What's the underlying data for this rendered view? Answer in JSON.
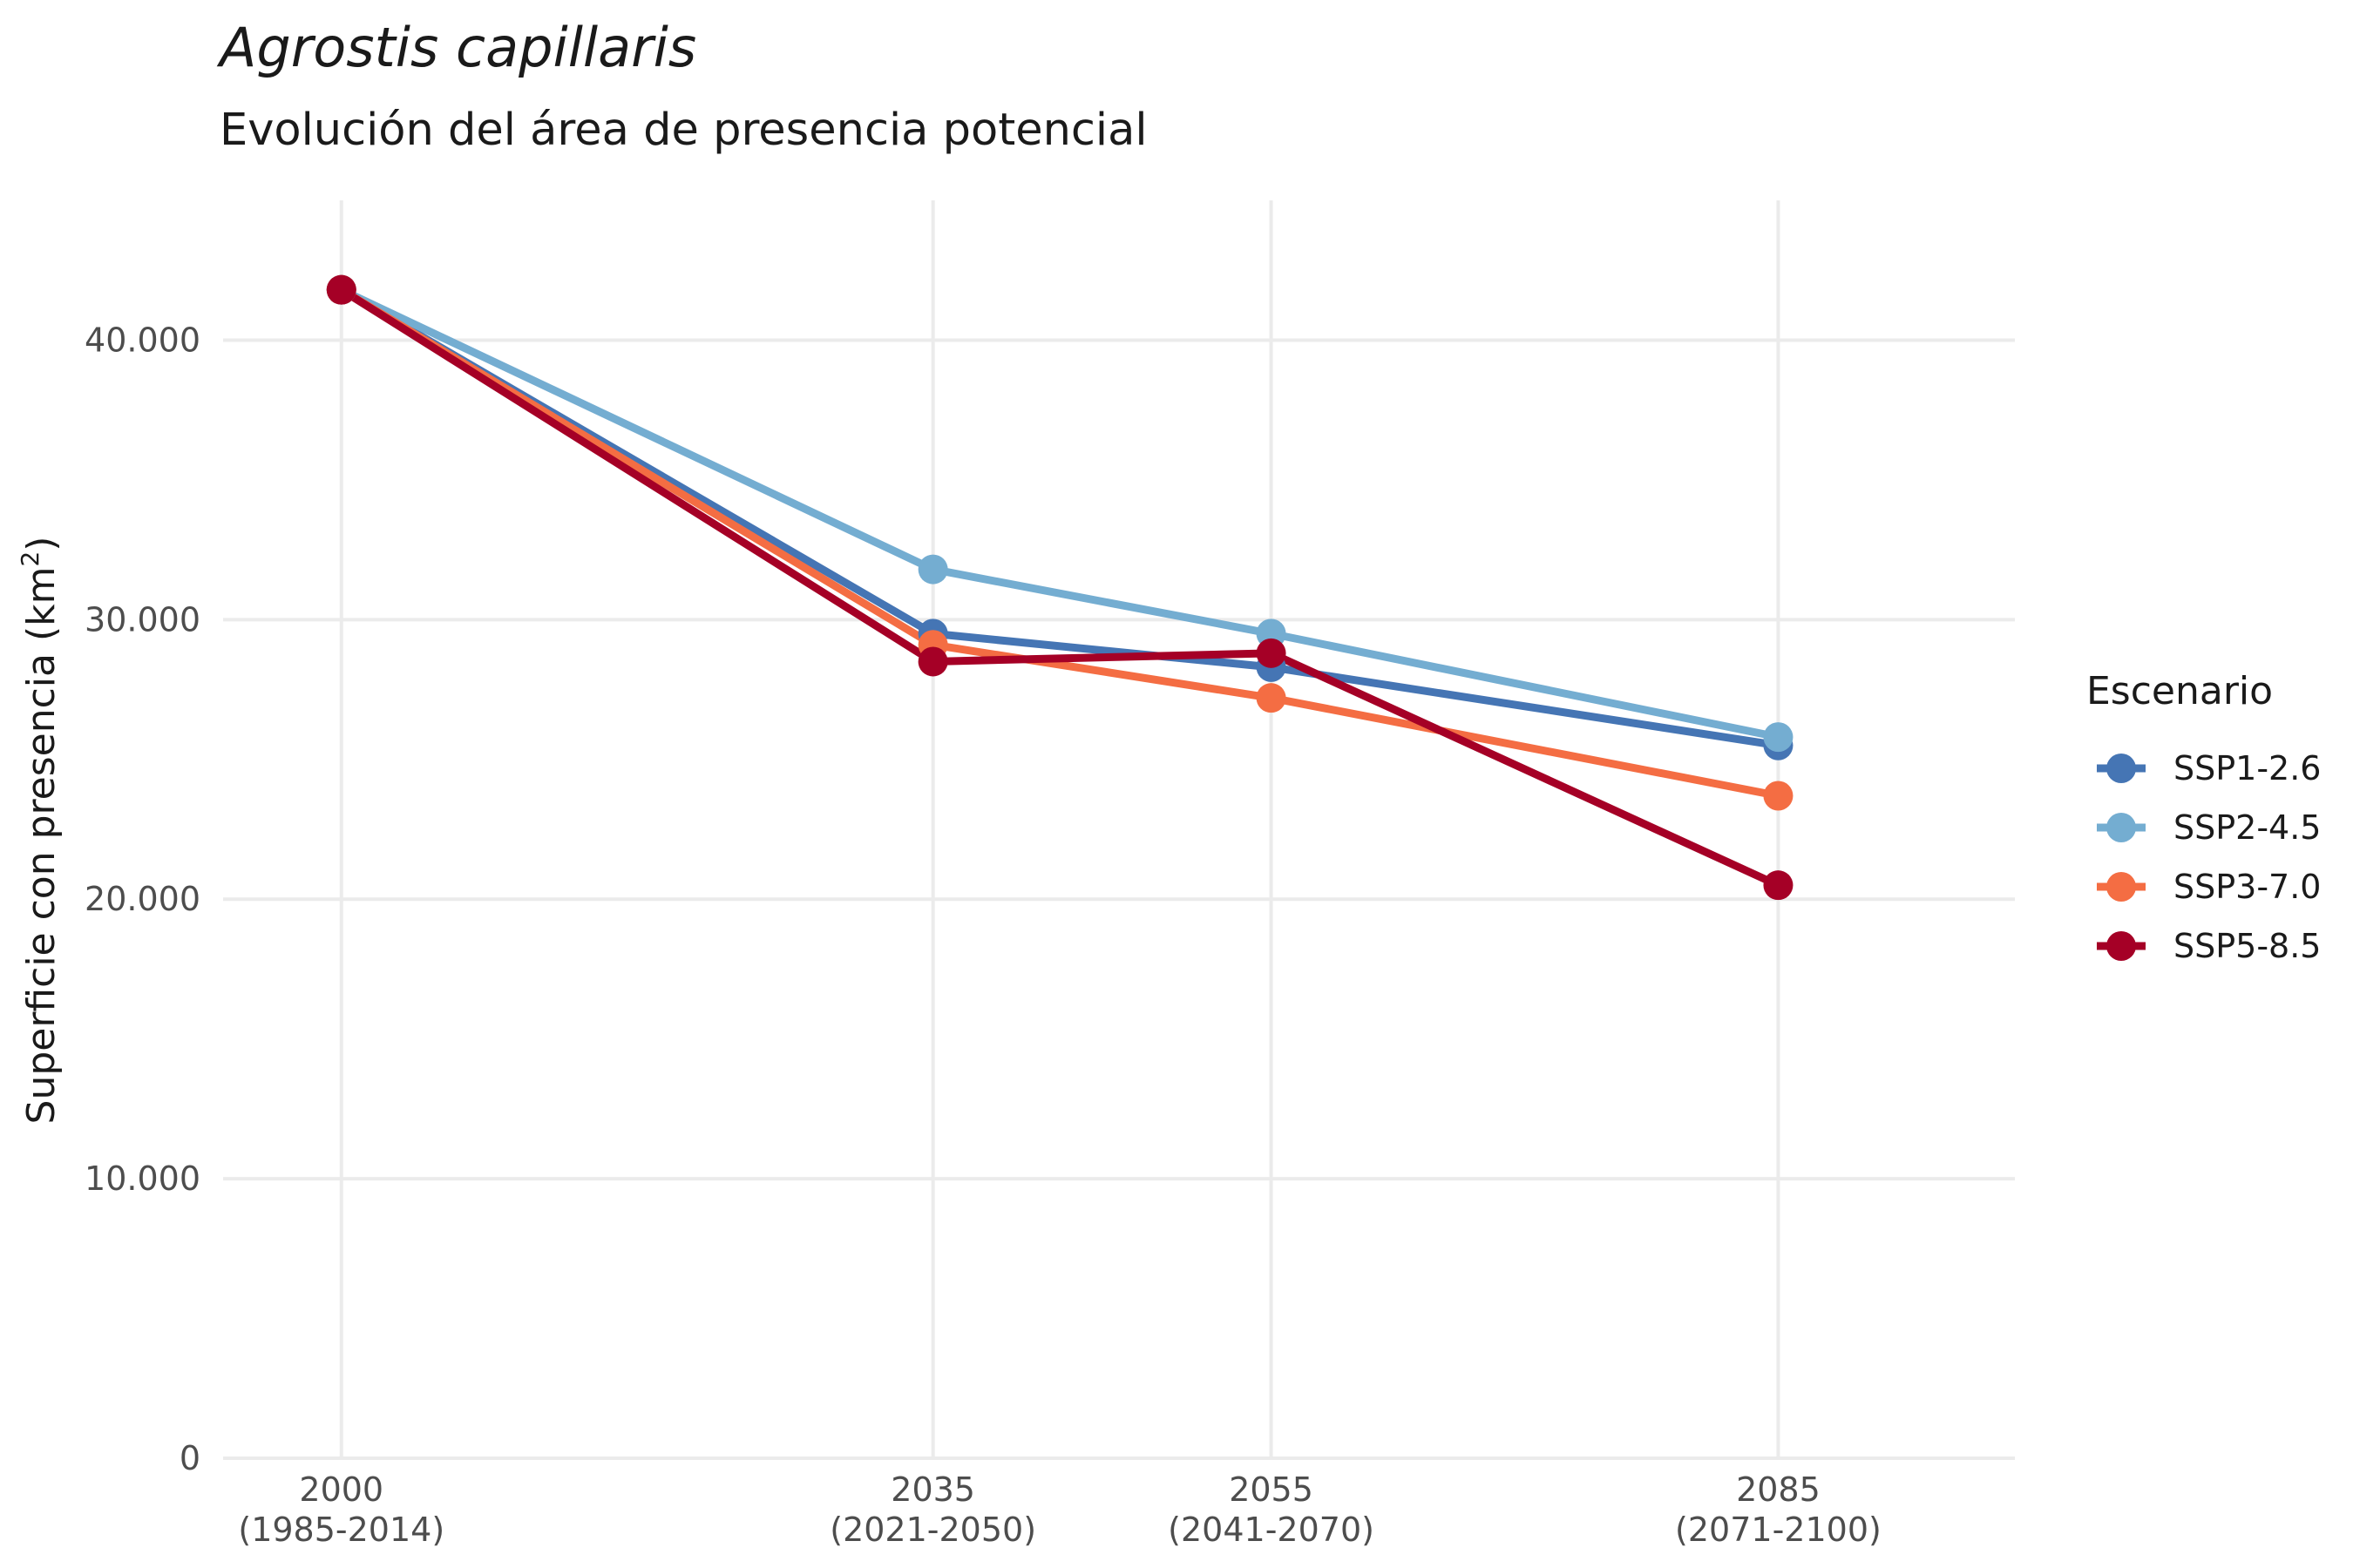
{
  "chart_data": {
    "type": "line",
    "title": "Agrostis capillaris",
    "subtitle": "Evolución del área de presencia potencial",
    "xlabel": "",
    "ylabel_main": "Superficie con presencia (km",
    "ylabel_sup": "2",
    "ylabel_close": ")",
    "x": [
      2000,
      2035,
      2055,
      2085
    ],
    "x_tick_labels": [
      [
        "2000",
        "(1985-2014)"
      ],
      [
        "2035",
        "(2021-2050)"
      ],
      [
        "2055",
        "(2041-2070)"
      ],
      [
        "2085",
        "(2071-2100)"
      ]
    ],
    "xlim": [
      1993,
      2099
    ],
    "y_ticks": [
      0,
      10000,
      20000,
      30000,
      40000
    ],
    "y_tick_labels": [
      "0",
      "10.000",
      "20.000",
      "30.000",
      "40.000"
    ],
    "ylim": [
      0,
      45000
    ],
    "grid": true,
    "legend_title": "Escenario",
    "legend_position": "right",
    "series": [
      {
        "name": "SSP1-2.6",
        "color": "#4575b4",
        "values": [
          41800,
          29500,
          28300,
          25500
        ]
      },
      {
        "name": "SSP2-4.5",
        "color": "#74add1",
        "values": [
          41800,
          31800,
          29500,
          25800
        ]
      },
      {
        "name": "SSP3-7.0",
        "color": "#f46d43",
        "values": [
          41800,
          29100,
          27200,
          23700
        ]
      },
      {
        "name": "SSP5-8.5",
        "color": "#a50026",
        "values": [
          41800,
          28500,
          28800,
          20500
        ]
      }
    ]
  }
}
